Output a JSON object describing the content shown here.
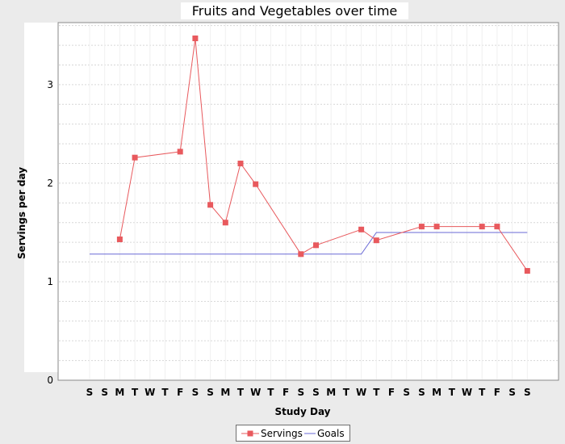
{
  "chart_data": {
    "type": "line",
    "title": "Fruits and Vegetables over time",
    "xlabel": "Study Day",
    "ylabel": "Servings per day",
    "categories": [
      "S",
      "S",
      "M",
      "T",
      "W",
      "T",
      "F",
      "S",
      "S",
      "M",
      "T",
      "W",
      "T",
      "F",
      "S",
      "S",
      "M",
      "T",
      "W",
      "T",
      "F",
      "S",
      "S",
      "M",
      "T",
      "W",
      "T",
      "F",
      "S",
      "S"
    ],
    "yticks": [
      0,
      1,
      2,
      3
    ],
    "ylim": [
      0,
      3.63
    ],
    "grid": true,
    "legend_position": "bottom",
    "series": [
      {
        "name": "Servings",
        "color": "#e8595d",
        "marker": "square",
        "values": [
          null,
          null,
          1.43,
          2.26,
          null,
          null,
          2.32,
          3.47,
          1.78,
          1.6,
          2.2,
          1.99,
          null,
          null,
          1.28,
          1.37,
          null,
          null,
          1.53,
          1.42,
          null,
          null,
          1.56,
          1.56,
          null,
          null,
          1.56,
          1.56,
          null,
          1.11
        ]
      },
      {
        "name": "Goals",
        "color": "#6a6ad6",
        "marker": "none",
        "values": [
          1.28,
          1.28,
          1.28,
          1.28,
          1.28,
          1.28,
          1.28,
          1.28,
          1.28,
          1.28,
          1.28,
          1.28,
          1.28,
          1.28,
          1.28,
          1.28,
          1.28,
          1.28,
          1.28,
          1.5,
          1.5,
          1.5,
          1.5,
          1.5,
          1.5,
          1.5,
          1.5,
          1.5,
          1.5,
          1.5
        ]
      }
    ]
  }
}
